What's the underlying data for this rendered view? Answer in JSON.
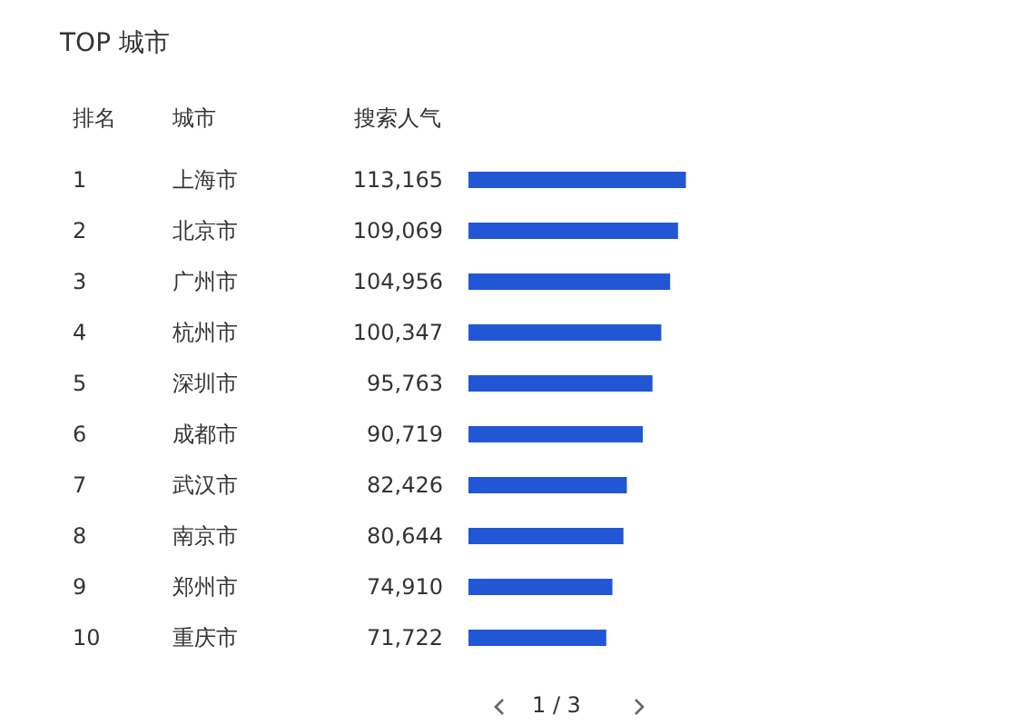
{
  "chart_data": {
    "type": "bar",
    "orientation": "horizontal",
    "title": "TOP 城市",
    "categories": [
      "上海市",
      "北京市",
      "广州市",
      "杭州市",
      "深圳市",
      "成都市",
      "武汉市",
      "南京市",
      "郑州市",
      "重庆市"
    ],
    "values": [
      113165,
      109069,
      104956,
      100347,
      95763,
      90719,
      82426,
      80644,
      74910,
      71722
    ],
    "value_labels": [
      "113,165",
      "109,069",
      "104,956",
      "100,347",
      "95,763",
      "90,719",
      "82,426",
      "80,644",
      "74,910",
      "71,722"
    ],
    "color": "#2157d5",
    "annotations": [
      "排名",
      "城市",
      "搜索人气",
      "1 / 3",
      "1",
      "2",
      "3",
      "4",
      "5",
      "6",
      "7",
      "8",
      "9",
      "10"
    ]
  }
}
